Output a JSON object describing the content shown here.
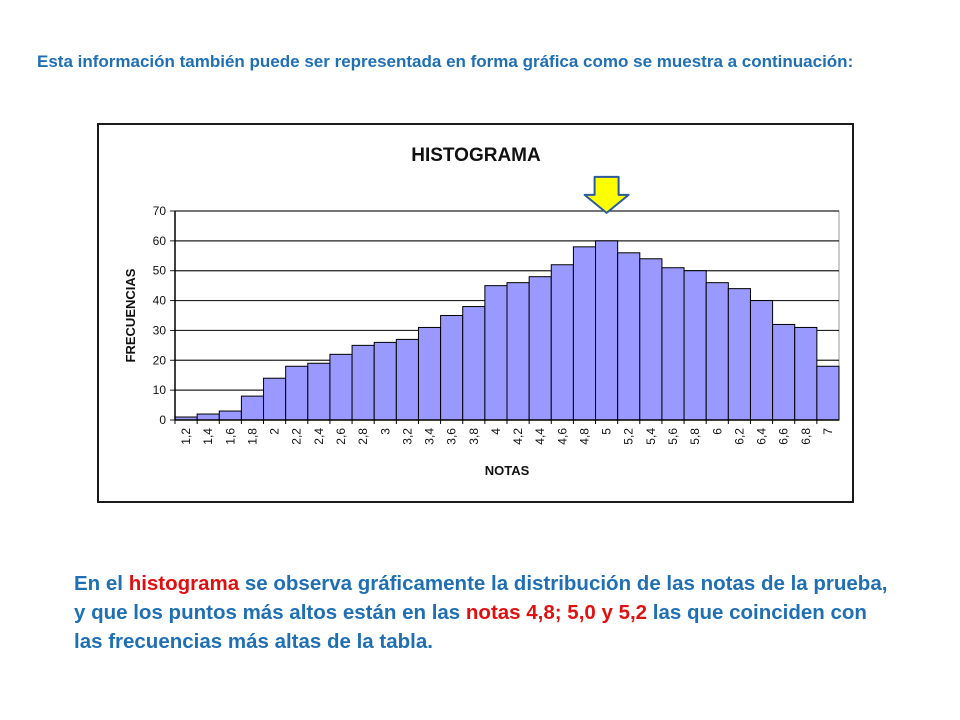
{
  "intro": {
    "text": "Esta información también puede ser representada en forma gráfica como se muestra a continuación:"
  },
  "conclusion": {
    "part1": "En el ",
    "highlight1": "histograma",
    "part2": " se observa gráficamente la distribución de las notas de la prueba, y que los puntos más altos están en las ",
    "highlight2": "notas 4,8; 5,0 y 5,2",
    "part3": " las que coinciden con las frecuencias más altas de la tabla."
  },
  "colors": {
    "text": "#1f6fb5",
    "highlight": "#e01010",
    "bar_fill": "#9999ff",
    "arrow_fill": "#ffff00",
    "arrow_stroke": "#2c5aa0"
  },
  "chart_data": {
    "type": "bar",
    "title": "HISTOGRAMA",
    "xlabel": "NOTAS",
    "ylabel": "FRECUENCIAS",
    "ylim": [
      0,
      70
    ],
    "yticks": [
      0,
      10,
      20,
      30,
      40,
      50,
      60,
      70
    ],
    "grid": true,
    "categories": [
      "1,2",
      "1,4",
      "1,6",
      "1,8",
      "2",
      "2,2",
      "2,4",
      "2,6",
      "2,8",
      "3",
      "3,2",
      "3,4",
      "3,6",
      "3,8",
      "4",
      "4,2",
      "4,4",
      "4,6",
      "4,8",
      "5",
      "5,2",
      "5,4",
      "5,6",
      "5,8",
      "6",
      "6,2",
      "6,4",
      "6,6",
      "6,8",
      "7"
    ],
    "values": [
      1,
      2,
      3,
      8,
      14,
      18,
      19,
      22,
      25,
      26,
      27,
      31,
      35,
      38,
      45,
      46,
      48,
      52,
      58,
      60,
      56,
      54,
      51,
      50,
      46,
      44,
      40,
      32,
      31,
      18
    ],
    "annotation": {
      "type": "arrow",
      "category": "5"
    }
  }
}
